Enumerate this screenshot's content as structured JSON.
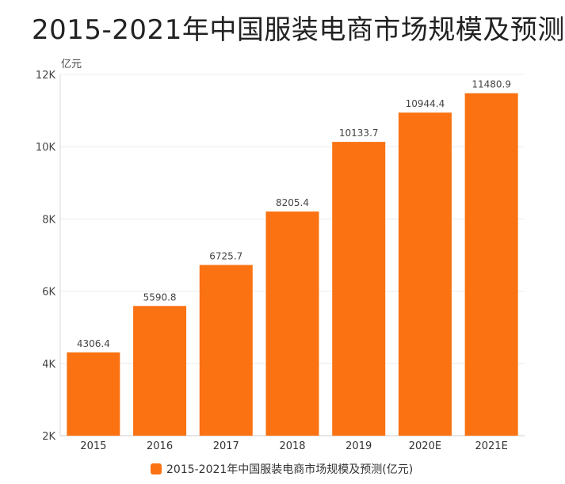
{
  "title": "2015-2021年中国服装电商市场规模及预测",
  "chart_data": {
    "type": "bar",
    "title": "2015-2021年中国服装电商市场规模及预测",
    "unit_label": "亿元",
    "categories": [
      "2015",
      "2016",
      "2017",
      "2018",
      "2019",
      "2020E",
      "2021E"
    ],
    "series": [
      {
        "name": "2015-2021年中国服装电商市场规模及预测(亿元)",
        "values": [
          4306.4,
          5590.8,
          6725.7,
          8205.4,
          10133.7,
          10944.4,
          11480.9
        ],
        "labels": [
          "4306.4",
          "5590.8",
          "6725.7",
          "8205.4",
          "10133.7",
          "10944.4",
          "11480.9"
        ],
        "color": "#fa7212"
      }
    ],
    "ylim": [
      2000,
      12000
    ],
    "yticks": [
      2000,
      4000,
      6000,
      8000,
      10000,
      12000
    ],
    "ytick_labels": [
      "2K",
      "4K",
      "6K",
      "8K",
      "10K",
      "12K"
    ],
    "grid": true,
    "legend_position": "bottom-center"
  },
  "legend": {
    "label": "2015-2021年中国服装电商市场规模及预测(亿元)",
    "color": "#fa7212"
  }
}
